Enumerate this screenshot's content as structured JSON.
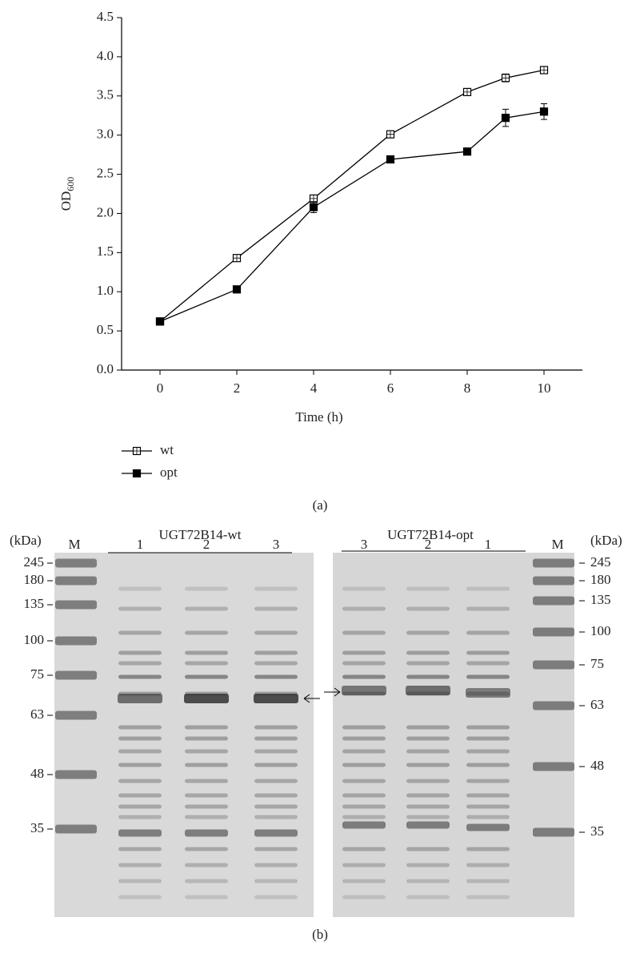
{
  "chart_data": {
    "type": "line",
    "xlabel": "Time (h)",
    "ylabel": "OD",
    "ylabel_subscript": "600",
    "x": [
      0,
      2,
      4,
      6,
      8,
      9,
      10
    ],
    "series": [
      {
        "name": "wt",
        "color": "#000000",
        "marker": "open-square",
        "values": [
          0.62,
          1.43,
          2.19,
          3.01,
          3.55,
          3.73,
          3.83
        ],
        "errors": [
          0.02,
          0.02,
          0.03,
          0.02,
          0.02,
          0.05,
          0.03
        ]
      },
      {
        "name": "opt",
        "color": "#000000",
        "marker": "filled-square",
        "values": [
          0.62,
          1.03,
          2.08,
          2.69,
          2.79,
          3.22,
          3.3
        ],
        "errors": [
          0.02,
          0.02,
          0.07,
          0.02,
          0.02,
          0.11,
          0.1
        ]
      }
    ],
    "xlim": [
      -1,
      11
    ],
    "xticks": [
      0,
      2,
      4,
      6,
      8,
      10
    ],
    "ylim": [
      0,
      4.5
    ],
    "yticks": [
      {
        "value": 0,
        "label": "0.0"
      },
      0.5,
      {
        "value": 1,
        "label": "1.0"
      },
      1.5,
      {
        "value": 2,
        "label": "2.0"
      },
      2.5,
      {
        "value": 3,
        "label": "3.0"
      },
      3.5,
      {
        "value": 4,
        "label": "4.0"
      },
      4.5
    ],
    "grid": false,
    "legend": "bottom-left",
    "panel_label": "(a)"
  },
  "gel": {
    "panel_label": "(b)",
    "left": {
      "unit": "(kDa)",
      "marker_lane": "M",
      "group": "UGT72B14-wt",
      "lanes": [
        "1",
        "2",
        "3"
      ],
      "sizes": [
        "245",
        "180",
        "135",
        "100",
        "75",
        "63",
        "48",
        "35"
      ]
    },
    "right": {
      "unit": "(kDa)",
      "marker_lane": "M",
      "group": "UGT72B14-opt",
      "lanes": [
        "3",
        "2",
        "1"
      ],
      "sizes": [
        "245",
        "180",
        "135",
        "100",
        "75",
        "63",
        "48",
        "35"
      ]
    }
  }
}
